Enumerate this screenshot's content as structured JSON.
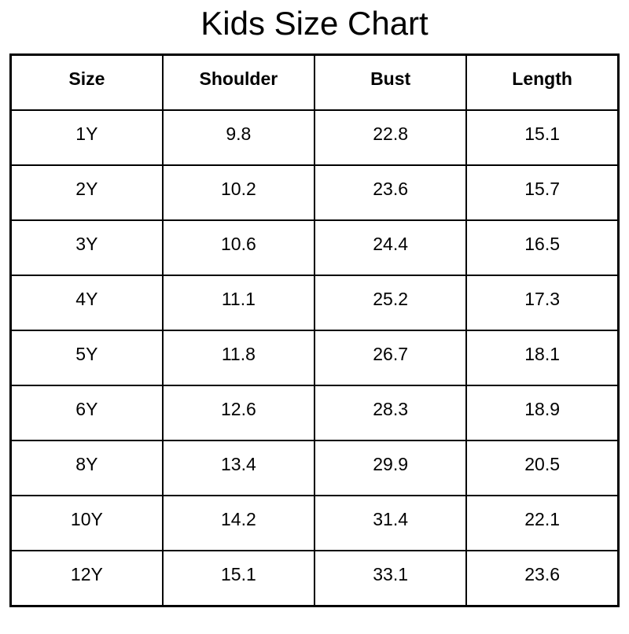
{
  "colors": {
    "background": "#ffffff",
    "text": "#000000",
    "border": "#000000"
  },
  "chart_data": {
    "type": "table",
    "title": "Kids Size Chart",
    "columns": [
      "Size",
      "Shoulder",
      "Bust",
      "Length"
    ],
    "rows": [
      [
        "1Y",
        "9.8",
        "22.8",
        "15.1"
      ],
      [
        "2Y",
        "10.2",
        "23.6",
        "15.7"
      ],
      [
        "3Y",
        "10.6",
        "24.4",
        "16.5"
      ],
      [
        "4Y",
        "11.1",
        "25.2",
        "17.3"
      ],
      [
        "5Y",
        "11.8",
        "26.7",
        "18.1"
      ],
      [
        "6Y",
        "12.6",
        "28.3",
        "18.9"
      ],
      [
        "8Y",
        "13.4",
        "29.9",
        "20.5"
      ],
      [
        "10Y",
        "14.2",
        "31.4",
        "22.1"
      ],
      [
        "12Y",
        "15.1",
        "33.1",
        "23.6"
      ]
    ]
  }
}
